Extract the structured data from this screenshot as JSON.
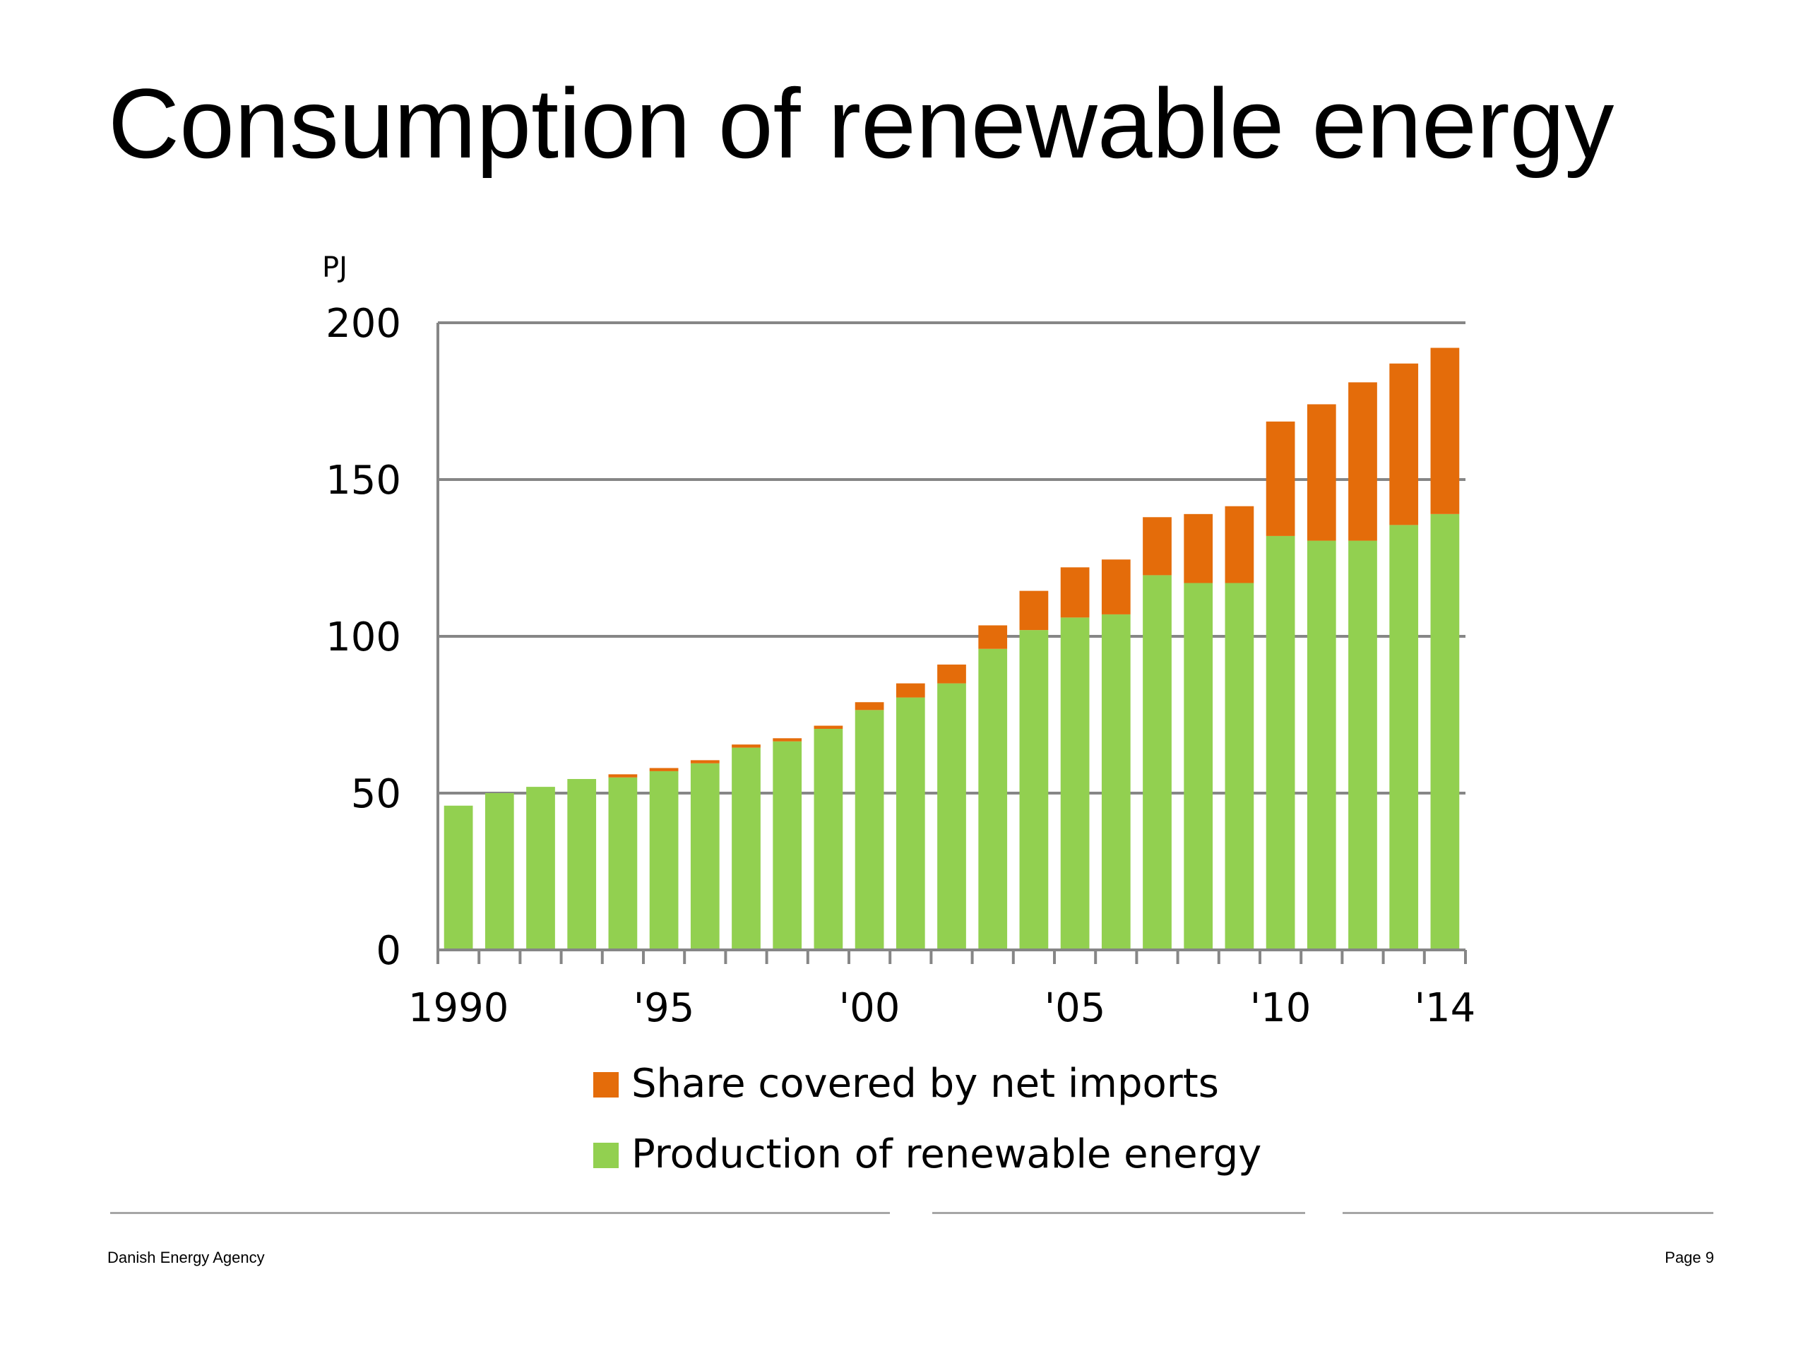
{
  "slide": {
    "title": "Consumption of renewable energy"
  },
  "footer": {
    "organization": "Danish Energy Agency",
    "page_label": "Page 9"
  },
  "colors": {
    "production": "#92d050",
    "imports": "#e46c0a",
    "grid": "#868686",
    "axis": "#868686"
  },
  "chart_data": {
    "type": "bar",
    "stacked": true,
    "unit_label": "PJ",
    "ylim": [
      0,
      200
    ],
    "y_ticks": [
      0,
      50,
      100,
      150,
      200
    ],
    "grid": true,
    "legend_position": "bottom",
    "x": [
      1990,
      1991,
      1992,
      1993,
      1994,
      1995,
      1996,
      1997,
      1998,
      1999,
      2000,
      2001,
      2002,
      2003,
      2004,
      2005,
      2006,
      2007,
      2008,
      2009,
      2010,
      2011,
      2012,
      2013,
      2014
    ],
    "x_tick_labels": [
      {
        "year": 1990,
        "label": "1990"
      },
      {
        "year": 1995,
        "label": "'95"
      },
      {
        "year": 2000,
        "label": "'00"
      },
      {
        "year": 2005,
        "label": "'05"
      },
      {
        "year": 2010,
        "label": "'10"
      },
      {
        "year": 2014,
        "label": "'14"
      }
    ],
    "series": [
      {
        "name": "Production of renewable energy",
        "color": "#92d050",
        "values": [
          46,
          50,
          52,
          54.5,
          55,
          57,
          59.5,
          64.5,
          66.5,
          70.5,
          76.5,
          80.5,
          85,
          96,
          102,
          106,
          107,
          119.5,
          117,
          117,
          132,
          130.5,
          130.5,
          135.5,
          139
        ]
      },
      {
        "name": "Share covered by net imports",
        "color": "#e46c0a",
        "values": [
          0,
          0,
          0,
          0,
          1,
          1,
          1,
          1,
          1,
          1,
          2.5,
          4.5,
          6,
          7.5,
          12.5,
          16,
          17.5,
          18.5,
          22,
          24.5,
          36.5,
          43.5,
          50.5,
          51.5,
          53
        ]
      }
    ]
  }
}
